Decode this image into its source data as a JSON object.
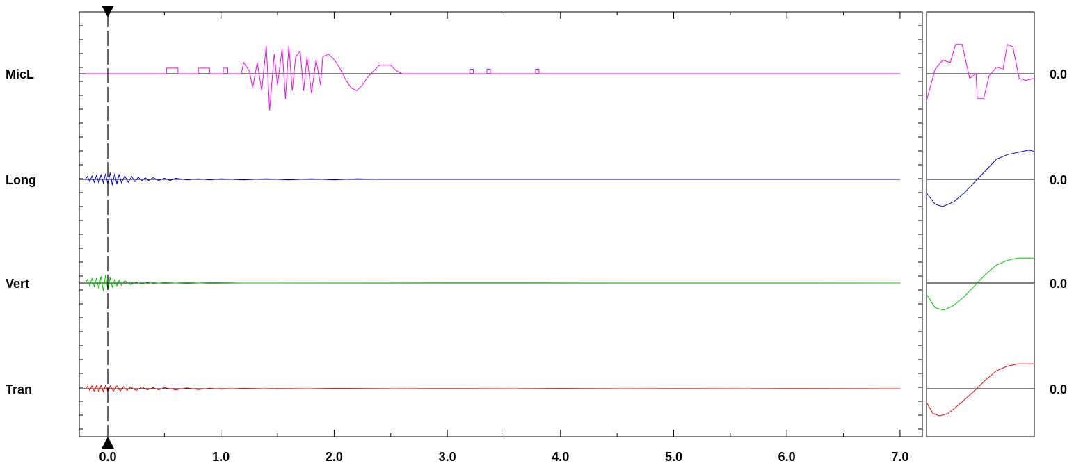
{
  "chart_data": {
    "type": "line",
    "title": "",
    "xlabel": "",
    "ylabel": "",
    "xlim": [
      -0.2,
      7.0
    ],
    "x_ticks": [
      "0.0",
      "1.0",
      "2.0",
      "3.0",
      "4.0",
      "5.0",
      "6.0",
      "7.0"
    ],
    "cursor_x": 0.0,
    "grid": false,
    "legend": "none",
    "series": [
      {
        "name": "MicL",
        "color": "#ff00ff",
        "value_label": "0.0",
        "main_points": [
          [
            -0.2,
            0
          ],
          [
            0.52,
            0
          ],
          [
            0.52,
            0.1
          ],
          [
            0.62,
            0.1
          ],
          [
            0.62,
            0
          ],
          [
            0.8,
            0
          ],
          [
            0.8,
            0.1
          ],
          [
            0.9,
            0.1
          ],
          [
            0.9,
            0
          ],
          [
            1.02,
            0
          ],
          [
            1.02,
            0.1
          ],
          [
            1.06,
            0.1
          ],
          [
            1.06,
            0
          ],
          [
            1.18,
            0
          ],
          [
            1.2,
            0.2
          ],
          [
            1.25,
            0.05
          ],
          [
            1.28,
            -0.25
          ],
          [
            1.32,
            0.2
          ],
          [
            1.36,
            -0.3
          ],
          [
            1.4,
            0.5
          ],
          [
            1.43,
            -0.65
          ],
          [
            1.47,
            0.35
          ],
          [
            1.5,
            -0.2
          ],
          [
            1.54,
            0.45
          ],
          [
            1.57,
            -0.45
          ],
          [
            1.6,
            0.5
          ],
          [
            1.63,
            -0.3
          ],
          [
            1.66,
            0.3
          ],
          [
            1.7,
            0.4
          ],
          [
            1.73,
            -0.3
          ],
          [
            1.76,
            0.3
          ],
          [
            1.8,
            -0.35
          ],
          [
            1.84,
            0.25
          ],
          [
            1.88,
            -0.2
          ],
          [
            1.9,
            0.3
          ],
          [
            1.95,
            0.35
          ],
          [
            2.0,
            0.25
          ],
          [
            2.05,
            0.1
          ],
          [
            2.1,
            -0.1
          ],
          [
            2.15,
            -0.25
          ],
          [
            2.2,
            -0.3
          ],
          [
            2.25,
            -0.2
          ],
          [
            2.3,
            -0.05
          ],
          [
            2.35,
            0.05
          ],
          [
            2.4,
            0.15
          ],
          [
            2.5,
            0.15
          ],
          [
            2.55,
            0.05
          ],
          [
            2.6,
            0
          ],
          [
            3.2,
            0
          ],
          [
            3.2,
            0.08
          ],
          [
            3.23,
            0.08
          ],
          [
            3.23,
            0
          ],
          [
            3.35,
            0
          ],
          [
            3.35,
            0.08
          ],
          [
            3.38,
            0.08
          ],
          [
            3.38,
            0
          ],
          [
            3.78,
            0
          ],
          [
            3.78,
            0.08
          ],
          [
            3.81,
            0.08
          ],
          [
            3.81,
            0
          ],
          [
            7.0,
            0
          ]
        ],
        "panel_points": [
          [
            0,
            -0.6
          ],
          [
            0.08,
            0.1
          ],
          [
            0.15,
            0.3
          ],
          [
            0.22,
            0.25
          ],
          [
            0.27,
            0.65
          ],
          [
            0.33,
            0.65
          ],
          [
            0.4,
            -0.1
          ],
          [
            0.46,
            0
          ],
          [
            0.47,
            -0.55
          ],
          [
            0.53,
            -0.55
          ],
          [
            0.58,
            -0.05
          ],
          [
            0.65,
            0.15
          ],
          [
            0.71,
            0.1
          ],
          [
            0.75,
            0.65
          ],
          [
            0.8,
            0.6
          ],
          [
            0.86,
            -0.1
          ],
          [
            0.92,
            -0.15
          ],
          [
            1.0,
            -0.1
          ]
        ]
      },
      {
        "name": "Long",
        "color": "#0000cc",
        "value_label": "0.0",
        "main_points": [
          [
            -0.2,
            0
          ],
          [
            -0.18,
            0.05
          ],
          [
            -0.16,
            -0.04
          ],
          [
            -0.14,
            0.06
          ],
          [
            -0.12,
            -0.05
          ],
          [
            -0.1,
            0.07
          ],
          [
            -0.08,
            -0.06
          ],
          [
            -0.06,
            0.08
          ],
          [
            -0.04,
            -0.06
          ],
          [
            -0.02,
            0.1
          ],
          [
            0.0,
            -0.08
          ],
          [
            0.02,
            0.12
          ],
          [
            0.04,
            -0.1
          ],
          [
            0.06,
            0.1
          ],
          [
            0.08,
            -0.08
          ],
          [
            0.1,
            0.09
          ],
          [
            0.12,
            -0.06
          ],
          [
            0.15,
            0.06
          ],
          [
            0.18,
            -0.05
          ],
          [
            0.21,
            0.05
          ],
          [
            0.24,
            -0.04
          ],
          [
            0.27,
            0.04
          ],
          [
            0.3,
            -0.03
          ],
          [
            0.33,
            0.03
          ],
          [
            0.36,
            -0.02
          ],
          [
            0.4,
            0.03
          ],
          [
            0.45,
            -0.02
          ],
          [
            0.5,
            0.02
          ],
          [
            0.55,
            -0.02
          ],
          [
            0.6,
            0.02
          ],
          [
            0.7,
            -0.01
          ],
          [
            0.8,
            0.01
          ],
          [
            0.9,
            -0.01
          ],
          [
            1.0,
            0.01
          ],
          [
            1.2,
            -0.01
          ],
          [
            1.4,
            0.01
          ],
          [
            1.6,
            -0.01
          ],
          [
            1.8,
            0.01
          ],
          [
            2.0,
            -0.01
          ],
          [
            2.2,
            0.01
          ],
          [
            2.4,
            0
          ],
          [
            2.6,
            0
          ],
          [
            7.0,
            0
          ]
        ],
        "panel_points": [
          [
            0,
            -0.3
          ],
          [
            0.08,
            -0.55
          ],
          [
            0.15,
            -0.6
          ],
          [
            0.25,
            -0.5
          ],
          [
            0.35,
            -0.3
          ],
          [
            0.45,
            -0.05
          ],
          [
            0.55,
            0.2
          ],
          [
            0.65,
            0.45
          ],
          [
            0.75,
            0.55
          ],
          [
            0.85,
            0.6
          ],
          [
            0.95,
            0.65
          ],
          [
            1.0,
            0.62
          ]
        ]
      },
      {
        "name": "Vert",
        "color": "#00cc00",
        "value_label": "0.0",
        "main_points": [
          [
            -0.2,
            0
          ],
          [
            -0.18,
            0.06
          ],
          [
            -0.16,
            -0.05
          ],
          [
            -0.14,
            0.08
          ],
          [
            -0.12,
            -0.06
          ],
          [
            -0.1,
            0.09
          ],
          [
            -0.08,
            -0.1
          ],
          [
            -0.06,
            0.12
          ],
          [
            -0.04,
            -0.14
          ],
          [
            -0.02,
            0.14
          ],
          [
            0.0,
            -0.12
          ],
          [
            0.02,
            0.1
          ],
          [
            0.04,
            -0.08
          ],
          [
            0.06,
            0.06
          ],
          [
            0.08,
            -0.05
          ],
          [
            0.1,
            0.05
          ],
          [
            0.12,
            -0.04
          ],
          [
            0.15,
            0.04
          ],
          [
            0.2,
            -0.03
          ],
          [
            0.25,
            0.02
          ],
          [
            0.3,
            -0.02
          ],
          [
            0.35,
            0.015
          ],
          [
            0.4,
            -0.01
          ],
          [
            0.5,
            0.01
          ],
          [
            0.7,
            -0.01
          ],
          [
            0.9,
            0.008
          ],
          [
            1.2,
            0
          ],
          [
            3.0,
            0.004
          ],
          [
            7.0,
            0
          ]
        ],
        "panel_points": [
          [
            0,
            -0.25
          ],
          [
            0.08,
            -0.55
          ],
          [
            0.16,
            -0.6
          ],
          [
            0.25,
            -0.5
          ],
          [
            0.35,
            -0.3
          ],
          [
            0.45,
            -0.05
          ],
          [
            0.55,
            0.2
          ],
          [
            0.65,
            0.4
          ],
          [
            0.75,
            0.5
          ],
          [
            0.85,
            0.55
          ],
          [
            1.0,
            0.55
          ]
        ]
      },
      {
        "name": "Tran",
        "color": "#ff0000",
        "value_label": "0.0",
        "main_points": [
          [
            -0.2,
            0
          ],
          [
            -0.18,
            0.04
          ],
          [
            -0.16,
            -0.03
          ],
          [
            -0.14,
            0.05
          ],
          [
            -0.12,
            -0.04
          ],
          [
            -0.1,
            0.05
          ],
          [
            -0.08,
            -0.05
          ],
          [
            -0.06,
            0.06
          ],
          [
            -0.04,
            -0.05
          ],
          [
            -0.02,
            0.06
          ],
          [
            0.0,
            -0.05
          ],
          [
            0.02,
            0.05
          ],
          [
            0.05,
            -0.04
          ],
          [
            0.08,
            0.05
          ],
          [
            0.11,
            -0.04
          ],
          [
            0.14,
            0.04
          ],
          [
            0.17,
            -0.03
          ],
          [
            0.2,
            0.03
          ],
          [
            0.25,
            -0.03
          ],
          [
            0.3,
            0.03
          ],
          [
            0.35,
            -0.02
          ],
          [
            0.4,
            0.02
          ],
          [
            0.45,
            -0.02
          ],
          [
            0.5,
            0.02
          ],
          [
            0.6,
            -0.02
          ],
          [
            0.7,
            0.015
          ],
          [
            0.8,
            -0.015
          ],
          [
            0.9,
            0.01
          ],
          [
            1.0,
            -0.01
          ],
          [
            1.2,
            0.008
          ],
          [
            1.5,
            -0.008
          ],
          [
            2.0,
            0.006
          ],
          [
            3.0,
            -0.006
          ],
          [
            4.0,
            0.005
          ],
          [
            5.0,
            -0.005
          ],
          [
            6.0,
            0.004
          ],
          [
            7.0,
            0
          ]
        ],
        "panel_points": [
          [
            0,
            -0.3
          ],
          [
            0.06,
            -0.55
          ],
          [
            0.12,
            -0.6
          ],
          [
            0.2,
            -0.55
          ],
          [
            0.3,
            -0.35
          ],
          [
            0.42,
            -0.1
          ],
          [
            0.55,
            0.2
          ],
          [
            0.65,
            0.4
          ],
          [
            0.75,
            0.5
          ],
          [
            0.85,
            0.55
          ],
          [
            1.0,
            0.55
          ]
        ]
      }
    ]
  }
}
